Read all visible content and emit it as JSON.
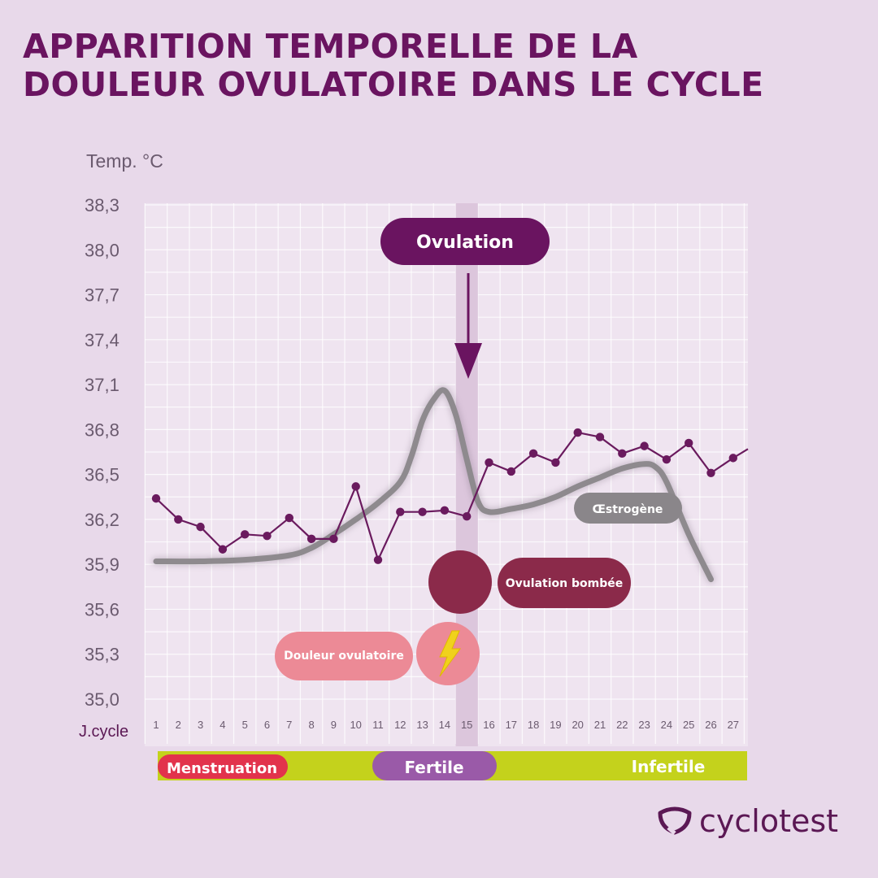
{
  "title": {
    "line1": "APPARITION TEMPORELLE DE LA",
    "line2": "DOULEUR OVULATOIRE DANS LE CYCLE"
  },
  "brand": {
    "name": "cyclotest"
  },
  "colors": {
    "background": "#e8d9ea",
    "plot_background": "#efe4f0",
    "title": "#6a1460",
    "temperature_line": "#6a1a5e",
    "estrogen_curve": "#8e8a8e",
    "ovulation_band": "#dcc6dc",
    "ovulation_label": "#6a1460",
    "ovulation_bombee": "#8b2a4a",
    "douleur": "#ec8a96",
    "lightning": "#f0d21c",
    "phase_bar": "#c4d21c",
    "menstruation": "#e2334c",
    "fertile": "#9a5aa8"
  },
  "chart_data": {
    "type": "line",
    "ylabel": "Temp. °C",
    "xlabel": "J.cycle",
    "ylim": [
      35.0,
      38.3
    ],
    "yticks": [
      "38,3",
      "38,0",
      "37,7",
      "37,4",
      "37,1",
      "36,8",
      "36,5",
      "36,2",
      "35,9",
      "35,6",
      "35,3",
      "35,0"
    ],
    "ytick_values": [
      38.3,
      38.0,
      37.7,
      37.4,
      37.1,
      36.8,
      36.5,
      36.2,
      35.9,
      35.6,
      35.3,
      35.0
    ],
    "xlim": [
      0.5,
      27.5
    ],
    "x": [
      1,
      2,
      3,
      4,
      5,
      6,
      7,
      8,
      9,
      10,
      11,
      12,
      13,
      14,
      15,
      16,
      17,
      18,
      19,
      20,
      21,
      22,
      23,
      24,
      25,
      26,
      27
    ],
    "grid": true,
    "series": [
      {
        "role": "temperature",
        "values": [
          36.34,
          36.2,
          36.15,
          36.0,
          36.1,
          36.09,
          36.21,
          36.07,
          36.07,
          36.42,
          35.93,
          36.25,
          36.25,
          36.26,
          36.22,
          36.58,
          36.52,
          36.64,
          36.58,
          36.78,
          36.75,
          36.64,
          36.69,
          36.6,
          36.71,
          36.51,
          36.61
        ]
      },
      {
        "role": "estrogen",
        "label": "Œstrogène",
        "x": [
          1,
          3,
          5,
          7,
          8,
          9,
          10,
          11,
          12,
          12.5,
          13,
          13.5,
          14,
          14.5,
          15,
          15.5,
          16,
          17,
          18,
          19,
          20,
          21,
          22,
          23,
          23.5,
          24,
          25,
          26
        ],
        "values": [
          35.92,
          35.92,
          35.93,
          35.96,
          36.01,
          36.1,
          36.2,
          36.31,
          36.45,
          36.62,
          36.86,
          37.0,
          37.06,
          36.9,
          36.6,
          36.32,
          36.25,
          36.27,
          36.3,
          36.35,
          36.42,
          36.48,
          36.54,
          36.57,
          36.55,
          36.45,
          36.1,
          35.8
        ]
      }
    ],
    "annotations": {
      "ovulation": {
        "label": "Ovulation",
        "day": 15
      },
      "ovulation_bombee": {
        "label": "Ovulation bombée",
        "day": 14.5
      },
      "douleur_ovulatoire": {
        "label": "Douleur ovulatoire",
        "day": 14.3
      }
    },
    "phases": [
      {
        "label": "Menstruation",
        "from_day": 1,
        "to_day": 6.8
      },
      {
        "label": "Fertile",
        "from_day": 11.8,
        "to_day": 15.8
      },
      {
        "label": "Infertile",
        "from_day": 21,
        "to_day": 27
      }
    ]
  }
}
